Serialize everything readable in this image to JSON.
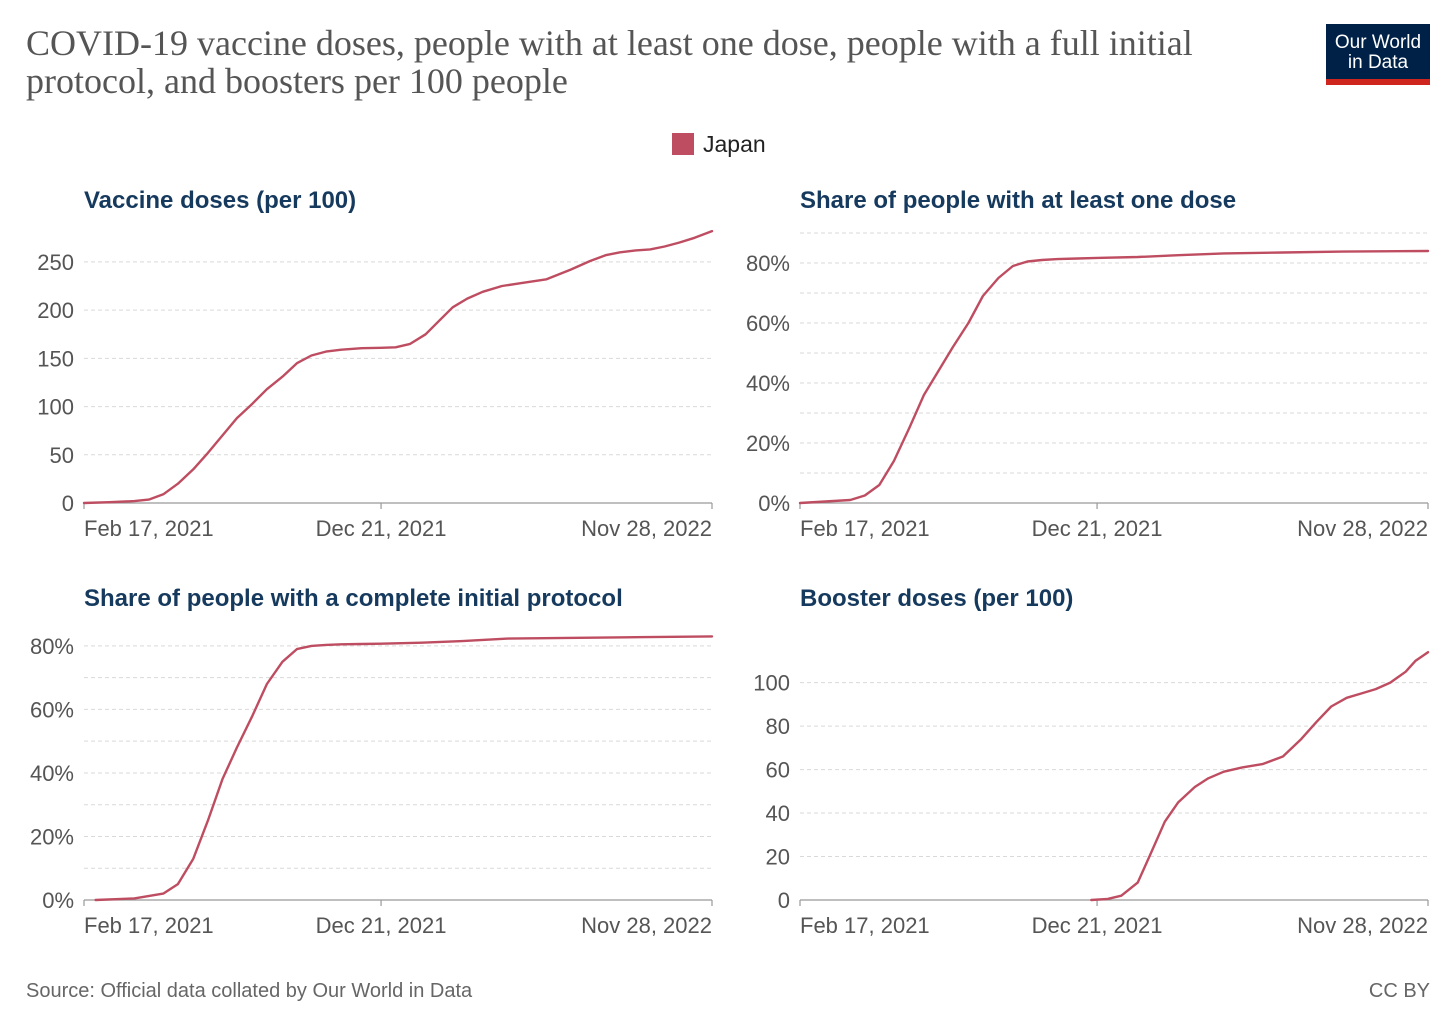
{
  "header": {
    "title": "COVID-19 vaccine doses, people with at least one dose, people with a full initial protocol, and boosters per 100 people",
    "logo_line1": "Our World",
    "logo_line2": "in Data"
  },
  "legend": {
    "label": "Japan",
    "color": "#be4d61"
  },
  "footer": {
    "source": "Source: Official data collated by Our World in Data",
    "license": "CC BY"
  },
  "colors": {
    "series": "#be4d61",
    "title": "#163a5e",
    "tick": "#555555",
    "grid": "#d9d9d9",
    "axis": "#999999"
  },
  "chart_data": [
    {
      "type": "line",
      "title": "Vaccine doses (per 100)",
      "x_ticks": [
        "Feb 17, 2021",
        "Dec 21, 2021",
        "Nov 28, 2022"
      ],
      "y_ticks": [
        "0",
        "50",
        "100",
        "150",
        "200",
        "250"
      ],
      "ylim": [
        0,
        280
      ],
      "y_tick_values": [
        0,
        50,
        100,
        150,
        200,
        250
      ],
      "grid": true,
      "series": [
        {
          "name": "Japan",
          "x": [
            "2021-02-17",
            "2021-03-15",
            "2021-04-10",
            "2021-04-25",
            "2021-05-10",
            "2021-05-25",
            "2021-06-10",
            "2021-06-25",
            "2021-07-10",
            "2021-07-25",
            "2021-08-10",
            "2021-08-25",
            "2021-09-10",
            "2021-09-25",
            "2021-10-10",
            "2021-10-25",
            "2021-11-10",
            "2021-12-01",
            "2021-12-21",
            "2022-01-05",
            "2022-01-20",
            "2022-02-05",
            "2022-02-20",
            "2022-03-05",
            "2022-03-20",
            "2022-04-05",
            "2022-04-25",
            "2022-05-15",
            "2022-06-10",
            "2022-07-05",
            "2022-07-25",
            "2022-08-10",
            "2022-08-25",
            "2022-09-10",
            "2022-09-25",
            "2022-10-10",
            "2022-10-25",
            "2022-11-10",
            "2022-11-28"
          ],
          "values": [
            0,
            0.8,
            2,
            3.5,
            9,
            20,
            35,
            52,
            70,
            88,
            103,
            118,
            131,
            145,
            153,
            157,
            159,
            160.5,
            161,
            161.5,
            165,
            175,
            190,
            203,
            212,
            219,
            225,
            228,
            232,
            242,
            251,
            257,
            260,
            262,
            263,
            266,
            270,
            275,
            282
          ]
        }
      ]
    },
    {
      "type": "line",
      "title": "Share of people with at least one dose",
      "x_ticks": [
        "Feb 17, 2021",
        "Dec 21, 2021",
        "Nov 28, 2022"
      ],
      "y_ticks": [
        "0%",
        "20%",
        "40%",
        "60%",
        "80%"
      ],
      "ylim": [
        0,
        90
      ],
      "y_tick_values": [
        0,
        20,
        40,
        60,
        80
      ],
      "y_minor_ticks": [
        10,
        30,
        50,
        70,
        90
      ],
      "grid": true,
      "series": [
        {
          "name": "Japan",
          "x": [
            "2021-02-17",
            "2021-03-15",
            "2021-04-10",
            "2021-04-25",
            "2021-05-10",
            "2021-05-25",
            "2021-06-10",
            "2021-06-25",
            "2021-07-10",
            "2021-07-25",
            "2021-08-10",
            "2021-08-25",
            "2021-09-10",
            "2021-09-25",
            "2021-10-10",
            "2021-10-25",
            "2021-11-10",
            "2021-12-01",
            "2021-12-21",
            "2022-02-01",
            "2022-03-15",
            "2022-05-01",
            "2022-07-01",
            "2022-09-01",
            "2022-11-28"
          ],
          "values": [
            0,
            0.5,
            1,
            2.5,
            6,
            14,
            25,
            36,
            44,
            52,
            60,
            69,
            75,
            79,
            80.5,
            81,
            81.3,
            81.5,
            81.7,
            82,
            82.6,
            83.2,
            83.5,
            83.8,
            84
          ]
        }
      ]
    },
    {
      "type": "line",
      "title": "Share of people with a complete initial protocol",
      "x_ticks": [
        "Feb 17, 2021",
        "Dec 21, 2021",
        "Nov 28, 2022"
      ],
      "y_ticks": [
        "0%",
        "20%",
        "40%",
        "60%",
        "80%"
      ],
      "ylim": [
        0,
        85
      ],
      "y_tick_values": [
        0,
        20,
        40,
        60,
        80
      ],
      "y_minor_ticks": [
        10,
        30,
        50,
        70
      ],
      "grid": true,
      "series": [
        {
          "name": "Japan",
          "x": [
            "2021-03-01",
            "2021-04-10",
            "2021-05-10",
            "2021-05-25",
            "2021-06-10",
            "2021-06-25",
            "2021-07-10",
            "2021-07-25",
            "2021-08-10",
            "2021-08-25",
            "2021-09-10",
            "2021-09-25",
            "2021-10-10",
            "2021-10-25",
            "2021-11-10",
            "2021-12-01",
            "2021-12-21",
            "2022-02-01",
            "2022-03-15",
            "2022-05-01",
            "2022-07-01",
            "2022-09-01",
            "2022-11-28"
          ],
          "values": [
            0,
            0.5,
            2,
            5,
            13,
            25,
            38,
            48,
            58,
            68,
            75,
            79,
            80,
            80.3,
            80.5,
            80.6,
            80.7,
            81,
            81.5,
            82.3,
            82.5,
            82.7,
            83
          ]
        }
      ]
    },
    {
      "type": "line",
      "title": "Booster doses (per 100)",
      "x_ticks": [
        "Feb 17, 2021",
        "Dec 21, 2021",
        "Nov 28, 2022"
      ],
      "y_ticks": [
        "0",
        "20",
        "40",
        "60",
        "80",
        "100"
      ],
      "ylim": [
        0,
        115
      ],
      "y_tick_values": [
        0,
        20,
        40,
        60,
        80,
        100
      ],
      "grid": true,
      "series": [
        {
          "name": "Japan",
          "x": [
            "2021-12-15",
            "2022-01-01",
            "2022-01-15",
            "2022-02-01",
            "2022-02-15",
            "2022-03-01",
            "2022-03-15",
            "2022-04-01",
            "2022-04-15",
            "2022-05-01",
            "2022-05-20",
            "2022-06-10",
            "2022-07-01",
            "2022-07-20",
            "2022-08-05",
            "2022-08-20",
            "2022-09-05",
            "2022-09-20",
            "2022-10-05",
            "2022-10-20",
            "2022-11-05",
            "2022-11-15",
            "2022-11-28"
          ],
          "values": [
            0,
            0.5,
            2,
            8,
            22,
            36,
            45,
            52,
            56,
            59,
            61,
            62.5,
            66,
            74,
            82,
            89,
            93,
            95,
            97,
            100,
            105,
            110,
            114
          ]
        }
      ]
    }
  ]
}
